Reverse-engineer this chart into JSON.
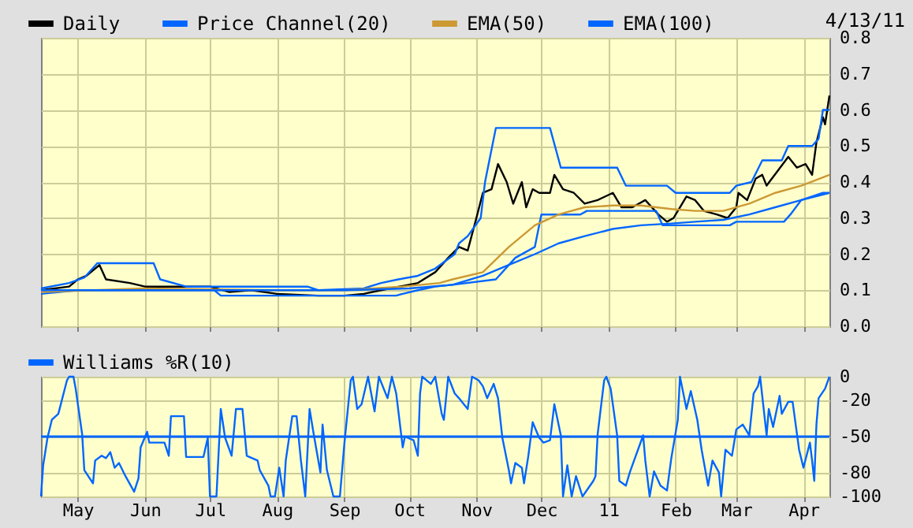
{
  "chart_data": [
    {
      "type": "line",
      "annotations": [
        "4/13/11"
      ],
      "xlim": [
        "2010-04-14",
        "2011-04-13"
      ],
      "ylim": [
        0,
        0.8
      ],
      "xticks": [
        {
          "value": "2010-05-01",
          "label": null
        },
        {
          "value": "2010-06-01",
          "label": null
        },
        {
          "value": "2010-07-01",
          "label": null
        },
        {
          "value": "2010-08-01",
          "label": null
        },
        {
          "value": "2010-09-01",
          "label": null
        },
        {
          "value": "2010-10-01",
          "label": null
        },
        {
          "value": "2010-11-01",
          "label": null
        },
        {
          "value": "2010-12-01",
          "label": null
        },
        {
          "value": "2011-01-01",
          "label": null
        },
        {
          "value": "2011-02-01",
          "label": null
        },
        {
          "value": "2011-03-01",
          "label": null
        },
        {
          "value": "2011-04-01",
          "label": null
        }
      ],
      "yticks": [
        {
          "value": 0,
          "label": "0.0"
        },
        0.1,
        0.2,
        0.3,
        0.4,
        0.5,
        0.6,
        0.7,
        0.8
      ],
      "tick_labels": "y",
      "grid": true,
      "legend": "top left",
      "series": [
        {
          "name": "Daily",
          "color": "#000000",
          "x": [
            "2010-04-14",
            "2010-04-27",
            "2010-05-01",
            "2010-05-05",
            "2010-05-11",
            "2010-05-14",
            "2010-05-25",
            "2010-06-01",
            "2010-06-20",
            "2010-07-01",
            "2010-07-10",
            "2010-07-20",
            "2010-08-01",
            "2010-08-20",
            "2010-09-01",
            "2010-09-10",
            "2010-09-18",
            "2010-10-05",
            "2010-10-13",
            "2010-10-19",
            "2010-10-24",
            "2010-10-28",
            "2010-11-01",
            "2010-11-04",
            "2010-11-08",
            "2010-11-11",
            "2010-11-15",
            "2010-11-18",
            "2010-11-22",
            "2010-11-24",
            "2010-11-27",
            "2010-11-30",
            "2010-12-05",
            "2010-12-07",
            "2010-12-11",
            "2010-12-16",
            "2010-12-21",
            "2010-12-27",
            "2011-01-03",
            "2011-01-07",
            "2011-01-12",
            "2011-01-18",
            "2011-01-24",
            "2011-01-28",
            "2011-01-31",
            "2011-02-03",
            "2011-02-06",
            "2011-02-10",
            "2011-02-14",
            "2011-02-20",
            "2011-02-25",
            "2011-03-01",
            "2011-03-02",
            "2011-03-06",
            "2011-03-10",
            "2011-03-13",
            "2011-03-15",
            "2011-03-20",
            "2011-03-25",
            "2011-03-29",
            "2011-04-02",
            "2011-04-05",
            "2011-04-07",
            "2011-04-10",
            "2011-04-11",
            "2011-04-13"
          ],
          "values": [
            0.1,
            0.11,
            0.13,
            0.14,
            0.17,
            0.13,
            0.12,
            0.11,
            0.11,
            0.11,
            0.095,
            0.1,
            0.09,
            0.085,
            0.085,
            0.09,
            0.1,
            0.12,
            0.15,
            0.19,
            0.22,
            0.21,
            0.3,
            0.37,
            0.38,
            0.45,
            0.4,
            0.34,
            0.4,
            0.33,
            0.38,
            0.37,
            0.37,
            0.42,
            0.38,
            0.37,
            0.34,
            0.35,
            0.37,
            0.33,
            0.33,
            0.35,
            0.31,
            0.29,
            0.3,
            0.33,
            0.36,
            0.35,
            0.32,
            0.31,
            0.3,
            0.33,
            0.37,
            0.35,
            0.41,
            0.42,
            0.39,
            0.43,
            0.47,
            0.44,
            0.45,
            0.42,
            0.51,
            0.58,
            0.56,
            0.64
          ]
        },
        {
          "name": "Price Channel(20)",
          "color": "#0066ff",
          "x": [
            "2010-04-14",
            "2010-04-27",
            "2010-05-04",
            "2010-05-10",
            "2010-06-05",
            "2010-06-08",
            "2010-06-20",
            "2010-08-15",
            "2010-08-20",
            "2010-09-10",
            "2010-09-18",
            "2010-09-26",
            "2010-10-05",
            "2010-10-13",
            "2010-10-22",
            "2010-10-24",
            "2010-10-28",
            "2010-11-03",
            "2010-11-05",
            "2010-11-10",
            "2010-12-05",
            "2010-12-10",
            "2011-01-05",
            "2011-01-09",
            "2011-01-28",
            "2011-02-01",
            "2011-02-26",
            "2011-03-01",
            "2011-03-08",
            "2011-03-13",
            "2011-03-22",
            "2011-03-25",
            "2011-04-05",
            "2011-04-08",
            "2011-04-10",
            "2011-04-13"
          ],
          "values": [
            0.105,
            0.12,
            0.135,
            0.175,
            0.175,
            0.13,
            0.11,
            0.11,
            0.1,
            0.105,
            0.12,
            0.13,
            0.14,
            0.16,
            0.2,
            0.23,
            0.25,
            0.3,
            0.4,
            0.55,
            0.55,
            0.44,
            0.44,
            0.39,
            0.39,
            0.37,
            0.37,
            0.39,
            0.4,
            0.46,
            0.46,
            0.5,
            0.5,
            0.52,
            0.6,
            0.6
          ]
        },
        {
          "color": "#0066ff",
          "x": [
            "2010-04-14",
            "2010-05-01",
            "2010-07-03",
            "2010-07-06",
            "2010-09-25",
            "2010-09-28",
            "2010-10-05",
            "2010-10-13",
            "2010-10-21",
            "2010-11-10",
            "2010-11-19",
            "2010-11-28",
            "2010-12-01",
            "2010-12-19",
            "2010-12-22",
            "2011-01-23",
            "2011-01-26",
            "2011-02-26",
            "2011-03-01",
            "2011-03-23",
            "2011-03-26",
            "2011-03-31",
            "2011-04-10",
            "2011-04-13"
          ],
          "values": [
            0.09,
            0.1,
            0.1,
            0.085,
            0.085,
            0.09,
            0.1,
            0.11,
            0.115,
            0.13,
            0.19,
            0.22,
            0.31,
            0.31,
            0.32,
            0.32,
            0.28,
            0.28,
            0.29,
            0.29,
            0.31,
            0.35,
            0.37,
            0.37
          ]
        },
        {
          "name": "EMA(50)",
          "color": "#cc9933",
          "x": [
            "2010-04-14",
            "2010-06-01",
            "2010-08-01",
            "2010-09-01",
            "2010-09-28",
            "2010-10-15",
            "2010-10-21",
            "2010-11-04",
            "2010-11-16",
            "2010-11-28",
            "2010-12-09",
            "2010-12-21",
            "2011-01-03",
            "2011-01-16",
            "2011-01-30",
            "2011-02-10",
            "2011-02-23",
            "2011-03-07",
            "2011-03-19",
            "2011-03-31",
            "2011-04-13"
          ],
          "values": [
            0.095,
            0.105,
            0.1,
            0.1,
            0.11,
            0.12,
            0.13,
            0.15,
            0.22,
            0.28,
            0.31,
            0.33,
            0.335,
            0.335,
            0.325,
            0.32,
            0.32,
            0.34,
            0.37,
            0.39,
            0.42
          ]
        },
        {
          "name": "EMA(100)",
          "color": "#0066ff",
          "x": [
            "2010-04-14",
            "2010-06-01",
            "2010-08-01",
            "2010-09-01",
            "2010-10-01",
            "2010-10-21",
            "2010-11-04",
            "2010-11-16",
            "2010-11-28",
            "2010-12-09",
            "2010-12-21",
            "2011-01-03",
            "2011-01-16",
            "2011-01-30",
            "2011-02-10",
            "2011-02-23",
            "2011-03-07",
            "2011-03-19",
            "2011-03-31",
            "2011-04-13"
          ],
          "values": [
            0.1,
            0.1,
            0.1,
            0.1,
            0.105,
            0.115,
            0.14,
            0.17,
            0.2,
            0.23,
            0.25,
            0.27,
            0.28,
            0.285,
            0.29,
            0.295,
            0.31,
            0.33,
            0.35,
            0.37
          ]
        }
      ]
    },
    {
      "type": "line",
      "xlim": [
        "2010-04-14",
        "2011-04-13"
      ],
      "ylim": [
        -100,
        0
      ],
      "xticks": [
        {
          "value": "2010-05-01",
          "label": "May"
        },
        {
          "value": "2010-06-01",
          "label": "Jun"
        },
        {
          "value": "2010-07-01",
          "label": "Jul"
        },
        {
          "value": "2010-08-01",
          "label": "Aug"
        },
        {
          "value": "2010-09-01",
          "label": "Sep"
        },
        {
          "value": "2010-10-01",
          "label": "Oct"
        },
        {
          "value": "2010-11-01",
          "label": "Nov"
        },
        {
          "value": "2010-12-01",
          "label": "Dec"
        },
        {
          "value": "2011-01-01",
          "label": "11"
        },
        {
          "value": "2011-02-01",
          "label": "Feb"
        },
        {
          "value": "2011-03-01",
          "label": "Mar"
        },
        {
          "value": "2011-04-01",
          "label": "Apr"
        }
      ],
      "yticks": [
        0,
        -20,
        -50,
        -80,
        -100
      ],
      "grid": true,
      "legend": "top left",
      "ref_lines": [
        {
          "axis": "y",
          "value": -50,
          "color": "#0066ff"
        }
      ],
      "series": [
        {
          "name": "Williams %R(10)",
          "color": "#0066ff",
          "x": [
            "2010-04-14",
            "2010-04-15",
            "2010-04-17",
            "2010-04-19",
            "2010-04-22",
            "2010-04-26",
            "2010-04-27",
            "2010-04-29",
            "2010-04-30",
            "2010-05-03",
            "2010-05-04",
            "2010-05-08",
            "2010-05-09",
            "2010-05-12",
            "2010-05-14",
            "2010-05-16",
            "2010-05-18",
            "2010-05-20",
            "2010-05-23",
            "2010-05-27",
            "2010-05-29",
            "2010-05-30",
            "2010-06-02",
            "2010-06-03",
            "2010-06-10",
            "2010-06-12",
            "2010-06-13",
            "2010-06-19",
            "2010-06-20",
            "2010-06-28",
            "2010-06-30",
            "2010-07-01",
            "2010-07-04",
            "2010-07-06",
            "2010-07-08",
            "2010-07-11",
            "2010-07-13",
            "2010-07-16",
            "2010-07-18",
            "2010-07-23",
            "2010-07-24",
            "2010-07-28",
            "2010-07-29",
            "2010-07-31",
            "2010-08-02",
            "2010-08-04",
            "2010-08-05",
            "2010-08-08",
            "2010-08-10",
            "2010-08-12",
            "2010-08-14",
            "2010-08-16",
            "2010-08-18",
            "2010-08-21",
            "2010-08-22",
            "2010-08-24",
            "2010-08-27",
            "2010-08-30",
            "2010-09-01",
            "2010-09-04",
            "2010-09-05",
            "2010-09-07",
            "2010-09-09",
            "2010-09-12",
            "2010-09-15",
            "2010-09-17",
            "2010-09-21",
            "2010-09-23",
            "2010-09-25",
            "2010-09-28",
            "2010-09-29",
            "2010-10-03",
            "2010-10-05",
            "2010-10-06",
            "2010-10-07",
            "2010-10-11",
            "2010-10-13",
            "2010-10-16",
            "2010-10-17",
            "2010-10-19",
            "2010-10-22",
            "2010-10-24",
            "2010-10-28",
            "2010-10-30",
            "2010-11-02",
            "2010-11-04",
            "2010-11-06",
            "2010-11-09",
            "2010-11-11",
            "2010-11-13",
            "2010-11-16",
            "2010-11-17",
            "2010-11-19",
            "2010-11-22",
            "2010-11-23",
            "2010-11-25",
            "2010-11-27",
            "2010-11-30",
            "2010-12-02",
            "2010-12-05",
            "2010-12-07",
            "2010-12-10",
            "2010-12-11",
            "2010-12-13",
            "2010-12-15",
            "2010-12-17",
            "2010-12-20",
            "2010-12-25",
            "2010-12-26",
            "2010-12-27",
            "2010-12-30",
            "2010-12-31",
            "2011-01-02",
            "2011-01-05",
            "2011-01-06",
            "2011-01-09",
            "2011-01-11",
            "2011-01-17",
            "2011-01-18",
            "2011-01-20",
            "2011-01-22",
            "2011-01-25",
            "2011-01-28",
            "2011-01-30",
            "2011-02-02",
            "2011-02-03",
            "2011-02-06",
            "2011-02-08",
            "2011-02-11",
            "2011-02-13",
            "2011-02-16",
            "2011-02-18",
            "2011-02-21",
            "2011-02-22",
            "2011-02-24",
            "2011-02-27",
            "2011-03-01",
            "2011-03-04",
            "2011-03-07",
            "2011-03-09",
            "2011-03-11",
            "2011-03-12",
            "2011-03-15",
            "2011-03-16",
            "2011-03-18",
            "2011-03-21",
            "2011-03-22",
            "2011-03-25",
            "2011-03-27",
            "2011-03-30",
            "2011-04-01",
            "2011-04-04",
            "2011-04-05",
            "2011-04-06",
            "2011-04-07",
            "2011-04-08",
            "2011-04-11",
            "2011-04-13"
          ],
          "values": [
            -100,
            -74,
            -51,
            -36,
            -31,
            -3,
            0,
            0,
            -10,
            -48,
            -78,
            -89,
            -70,
            -66,
            -68,
            -63,
            -76,
            -72,
            -83,
            -96,
            -85,
            -59,
            -46,
            -55,
            -55,
            -66,
            -33,
            -33,
            -67,
            -67,
            -51,
            -100,
            -100,
            -27,
            -51,
            -66,
            -27,
            -27,
            -66,
            -70,
            -78,
            -91,
            -100,
            -100,
            -76,
            -100,
            -70,
            -33,
            -33,
            -70,
            -100,
            -27,
            -49,
            -80,
            -40,
            -78,
            -100,
            -100,
            -57,
            -3,
            0,
            -27,
            -23,
            0,
            -29,
            0,
            -18,
            0,
            -14,
            -59,
            -50,
            -53,
            -66,
            -14,
            0,
            -6,
            0,
            -31,
            -36,
            0,
            -14,
            -18,
            -27,
            0,
            -3,
            -8,
            -18,
            -6,
            -18,
            -51,
            -78,
            -89,
            -72,
            -76,
            -89,
            -66,
            -38,
            -51,
            -55,
            -53,
            -23,
            -49,
            -100,
            -74,
            -100,
            -83,
            -100,
            -87,
            -83,
            -48,
            -3,
            0,
            -10,
            -49,
            -87,
            -91,
            -79,
            -49,
            -70,
            -100,
            -79,
            -91,
            -95,
            -68,
            -36,
            0,
            -27,
            -12,
            -36,
            -61,
            -91,
            -70,
            -80,
            -100,
            -61,
            -66,
            -44,
            -40,
            -49,
            -14,
            -8,
            0,
            -49,
            -27,
            -42,
            -16,
            -31,
            -21,
            -21,
            -61,
            -76,
            -55,
            -70,
            -87,
            -40,
            -18,
            -10,
            0
          ]
        }
      ]
    }
  ]
}
